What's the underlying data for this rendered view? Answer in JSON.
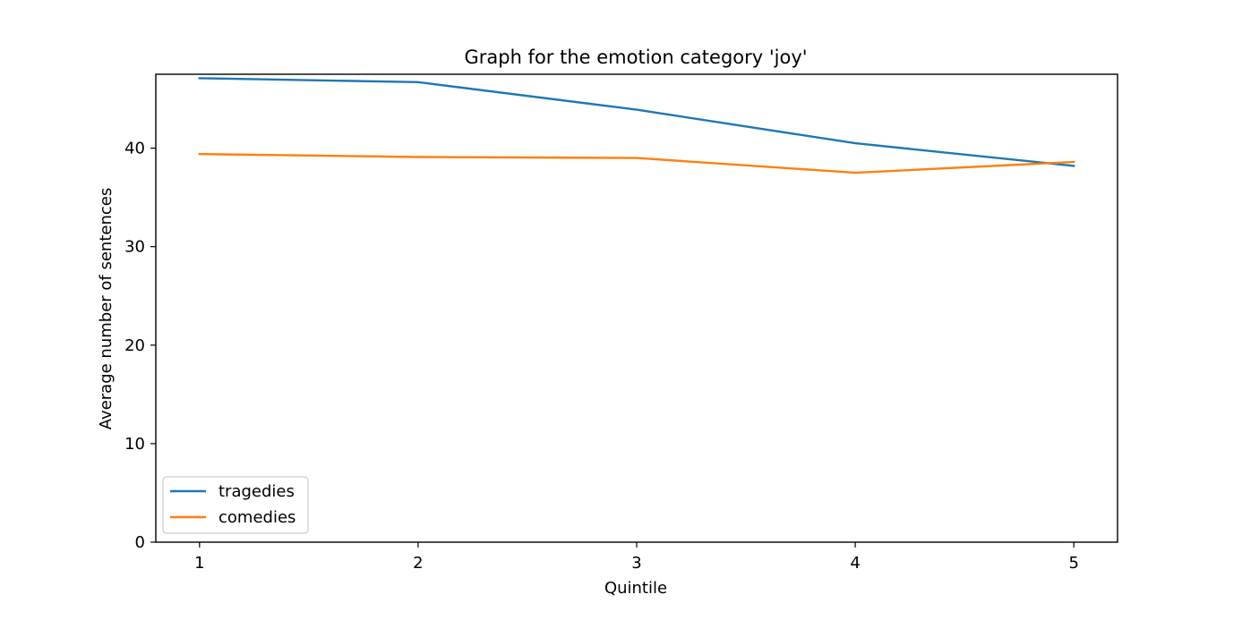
{
  "chart_data": {
    "type": "line",
    "title": "Graph for the emotion category 'joy'",
    "xlabel": "Quintile",
    "ylabel": "Average number of sentences",
    "x": [
      1,
      2,
      3,
      4,
      5
    ],
    "x_ticks": [
      "1",
      "2",
      "3",
      "4",
      "5"
    ],
    "y_ticks": [
      "0",
      "10",
      "20",
      "30",
      "40"
    ],
    "xlim": [
      0.8,
      5.2
    ],
    "ylim": [
      0,
      47.5
    ],
    "grid": false,
    "legend_position": "lower-left",
    "series": [
      {
        "name": "tragedies",
        "color": "#1f77b4",
        "values": [
          47.1,
          46.7,
          43.9,
          40.5,
          38.2
        ]
      },
      {
        "name": "comedies",
        "color": "#ff7f0e",
        "values": [
          39.4,
          39.1,
          39.0,
          37.5,
          38.6
        ]
      }
    ]
  }
}
